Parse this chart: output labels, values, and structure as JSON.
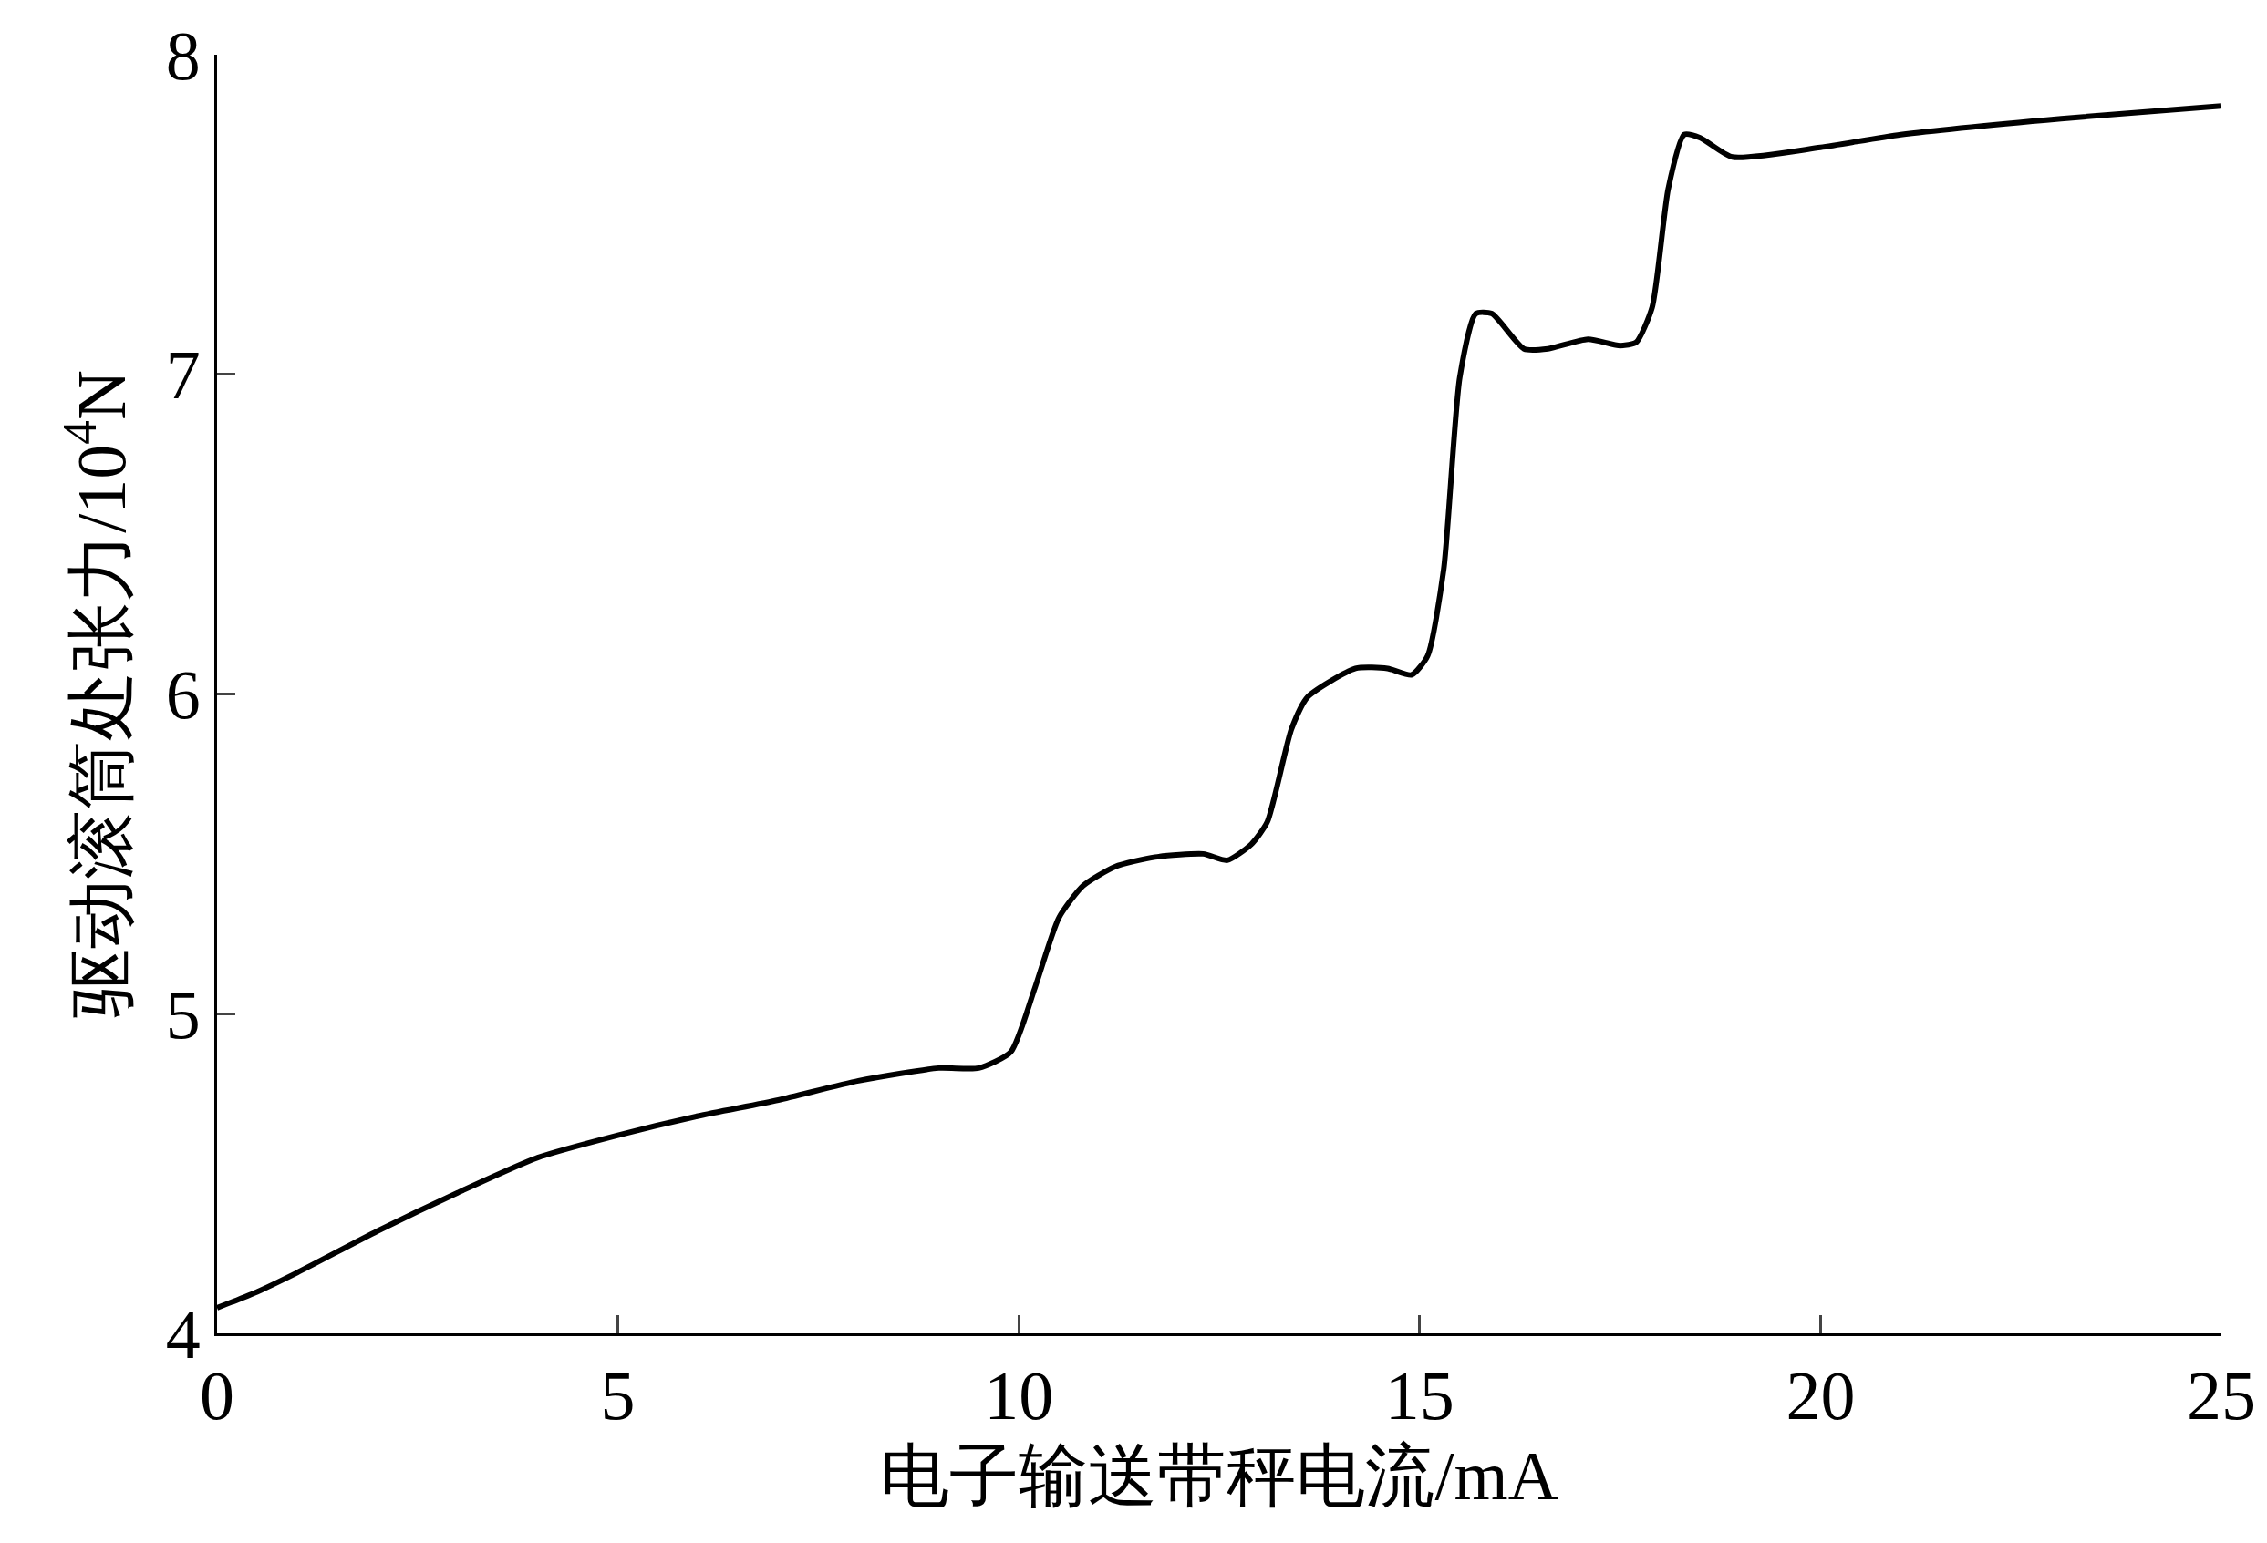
{
  "chart_data": {
    "type": "line",
    "xlabel": "电子输送带秤电流/mA",
    "ylabel": "驱动滚筒处张力/10$^{4}$N",
    "x": [
      0,
      0.5,
      1,
      2,
      3,
      4,
      5,
      6,
      7,
      8,
      9,
      9.5,
      9.9,
      10.2,
      10.5,
      10.8,
      11.2,
      11.7,
      12.3,
      12.6,
      12.9,
      13.1,
      13.4,
      13.6,
      14.2,
      14.6,
      14.9,
      15.1,
      15.3,
      15.5,
      15.7,
      15.9,
      16.3,
      16.6,
      17.1,
      17.5,
      17.7,
      17.9,
      18.1,
      18.3,
      18.5,
      18.9,
      20,
      21,
      23,
      25
    ],
    "series": [
      {
        "color": "#000000",
        "values": [
          4.08,
          4.13,
          4.19,
          4.32,
          4.44,
          4.55,
          4.62,
          4.68,
          4.73,
          4.79,
          4.83,
          4.83,
          4.88,
          5.08,
          5.3,
          5.4,
          5.46,
          5.49,
          5.5,
          5.48,
          5.53,
          5.6,
          5.89,
          5.99,
          6.08,
          6.08,
          6.06,
          6.12,
          6.39,
          6.99,
          7.19,
          7.19,
          7.08,
          7.08,
          7.11,
          7.09,
          7.1,
          7.21,
          7.58,
          7.75,
          7.74,
          7.68,
          7.71,
          7.75,
          7.8,
          7.84
        ]
      }
    ],
    "xlim": [
      0,
      25
    ],
    "xticks": [
      0,
      5,
      10,
      15,
      20,
      25
    ],
    "ylim": [
      4,
      8
    ],
    "yticks": [
      4,
      5,
      6,
      7,
      8
    ],
    "grid": false,
    "marker": "none",
    "line_style": "solid"
  }
}
